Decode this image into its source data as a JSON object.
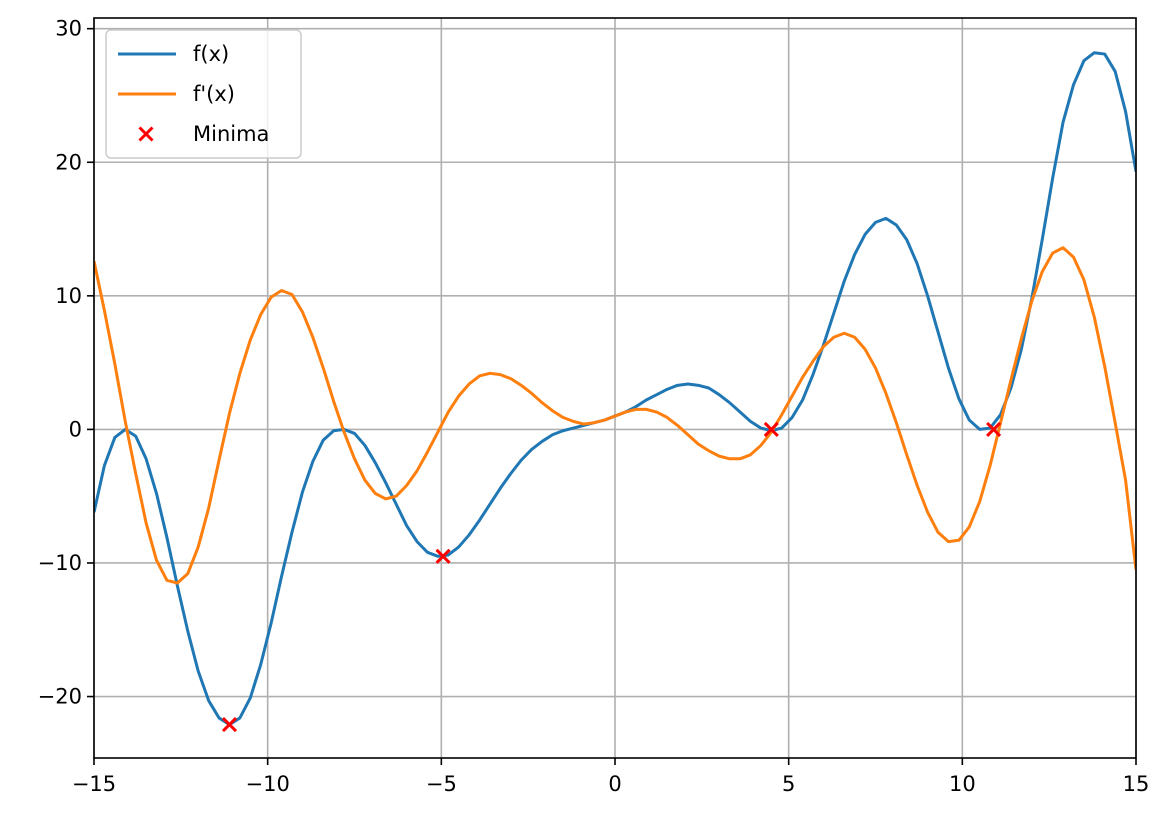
{
  "chart_data": {
    "type": "line",
    "xlim": [
      -15,
      15
    ],
    "ylim": [
      -24.6,
      30.8
    ],
    "grid": true,
    "legend_placement": "top-left",
    "x_ticks": [
      -15,
      -10,
      -5,
      0,
      5,
      10,
      15
    ],
    "x_tick_labels": [
      "−15",
      "−10",
      "−5",
      "0",
      "5",
      "10",
      "15"
    ],
    "y_ticks": [
      -20,
      -10,
      0,
      10,
      20,
      30
    ],
    "y_tick_labels": [
      "−20",
      "−10",
      "0",
      "10",
      "20",
      "30"
    ],
    "series": [
      {
        "name": "f(x)",
        "kind": "line",
        "color": "#1f77b4",
        "x": [
          -15,
          -14.7,
          -14.4,
          -14.1,
          -13.8,
          -13.5,
          -13.2,
          -12.9,
          -12.6,
          -12.3,
          -12.0,
          -11.7,
          -11.4,
          -11.1,
          -10.8,
          -10.5,
          -10.2,
          -9.9,
          -9.6,
          -9.3,
          -9.0,
          -8.7,
          -8.4,
          -8.1,
          -7.8,
          -7.5,
          -7.2,
          -6.9,
          -6.6,
          -6.3,
          -6.0,
          -5.7,
          -5.4,
          -5.1,
          -4.8,
          -4.5,
          -4.2,
          -3.9,
          -3.6,
          -3.3,
          -3.0,
          -2.7,
          -2.4,
          -2.1,
          -1.8,
          -1.5,
          -1.2,
          -0.9,
          -0.6,
          -0.3,
          0.0,
          0.3,
          0.6,
          0.9,
          1.2,
          1.5,
          1.8,
          2.1,
          2.4,
          2.7,
          3.0,
          3.3,
          3.6,
          3.9,
          4.2,
          4.5,
          4.8,
          5.1,
          5.4,
          5.7,
          6.0,
          6.3,
          6.6,
          6.9,
          7.2,
          7.5,
          7.8,
          8.1,
          8.4,
          8.7,
          9.0,
          9.3,
          9.6,
          9.9,
          10.2,
          10.5,
          10.8,
          11.1,
          11.4,
          11.7,
          12.0,
          12.3,
          12.6,
          12.9,
          13.2,
          13.5,
          13.8,
          14.1,
          14.4,
          14.7,
          15.0
        ],
        "y": [
          -6.2,
          -2.7,
          -0.6,
          0.0,
          -0.5,
          -2.2,
          -4.8,
          -8.1,
          -11.7,
          -15.1,
          -18.1,
          -20.3,
          -21.6,
          -22.1,
          -21.6,
          -20.1,
          -17.6,
          -14.5,
          -11.0,
          -7.7,
          -4.7,
          -2.4,
          -0.8,
          -0.1,
          0.0,
          -0.3,
          -1.2,
          -2.5,
          -4.0,
          -5.6,
          -7.2,
          -8.4,
          -9.2,
          -9.5,
          -9.4,
          -8.8,
          -7.9,
          -6.8,
          -5.6,
          -4.4,
          -3.3,
          -2.3,
          -1.5,
          -0.9,
          -0.4,
          -0.1,
          0.1,
          0.3,
          0.5,
          0.7,
          1.0,
          1.3,
          1.7,
          2.2,
          2.6,
          3.0,
          3.3,
          3.4,
          3.3,
          3.1,
          2.6,
          2.0,
          1.3,
          0.6,
          0.1,
          -0.1,
          0.1,
          0.9,
          2.2,
          4.1,
          6.3,
          8.7,
          11.1,
          13.1,
          14.6,
          15.5,
          15.8,
          15.3,
          14.2,
          12.4,
          10.0,
          7.3,
          4.6,
          2.3,
          0.7,
          0.0,
          0.1,
          1.1,
          3.1,
          6.0,
          9.8,
          14.2,
          18.8,
          23.0,
          25.8,
          27.6,
          28.2,
          28.1,
          26.8,
          23.8,
          19.3
        ]
      },
      {
        "name": "f'(x)",
        "kind": "line",
        "color": "#ff7f0e",
        "x": [
          -15,
          -14.7,
          -14.4,
          -14.1,
          -13.8,
          -13.5,
          -13.2,
          -12.9,
          -12.6,
          -12.3,
          -12.0,
          -11.7,
          -11.4,
          -11.1,
          -10.8,
          -10.5,
          -10.2,
          -9.9,
          -9.6,
          -9.3,
          -9.0,
          -8.7,
          -8.4,
          -8.1,
          -7.8,
          -7.5,
          -7.2,
          -6.9,
          -6.6,
          -6.3,
          -6.0,
          -5.7,
          -5.4,
          -5.1,
          -4.8,
          -4.5,
          -4.2,
          -3.9,
          -3.6,
          -3.3,
          -3.0,
          -2.7,
          -2.4,
          -2.1,
          -1.8,
          -1.5,
          -1.2,
          -0.9,
          -0.6,
          -0.3,
          0.0,
          0.3,
          0.6,
          0.9,
          1.2,
          1.5,
          1.8,
          2.1,
          2.4,
          2.7,
          3.0,
          3.3,
          3.6,
          3.9,
          4.2,
          4.5,
          4.8,
          5.1,
          5.4,
          5.7,
          6.0,
          6.3,
          6.6,
          6.9,
          7.2,
          7.5,
          7.8,
          8.1,
          8.4,
          8.7,
          9.0,
          9.3,
          9.6,
          9.9,
          10.2,
          10.5,
          10.8,
          11.1,
          11.4,
          11.7,
          12.0,
          12.3,
          12.6,
          12.9,
          13.2,
          13.5,
          13.8,
          14.1,
          14.4,
          14.7,
          15.0
        ],
        "y": [
          12.6,
          8.9,
          4.9,
          0.6,
          -3.3,
          -7.0,
          -9.8,
          -11.3,
          -11.5,
          -10.8,
          -8.8,
          -5.9,
          -2.3,
          1.2,
          4.2,
          6.7,
          8.6,
          9.9,
          10.4,
          10.1,
          8.8,
          6.9,
          4.6,
          2.1,
          -0.2,
          -2.2,
          -3.8,
          -4.8,
          -5.2,
          -5.0,
          -4.2,
          -3.1,
          -1.7,
          -0.2,
          1.3,
          2.5,
          3.4,
          4.0,
          4.2,
          4.1,
          3.8,
          3.3,
          2.7,
          2.0,
          1.4,
          0.9,
          0.6,
          0.4,
          0.5,
          0.7,
          1.0,
          1.3,
          1.5,
          1.5,
          1.3,
          0.9,
          0.3,
          -0.4,
          -1.1,
          -1.6,
          -2.0,
          -2.2,
          -2.2,
          -1.9,
          -1.2,
          -0.2,
          1.1,
          2.5,
          3.9,
          5.1,
          6.2,
          6.9,
          7.2,
          6.9,
          6.0,
          4.6,
          2.7,
          0.5,
          -1.9,
          -4.2,
          -6.2,
          -7.7,
          -8.4,
          -8.3,
          -7.3,
          -5.4,
          -2.7,
          0.5,
          3.7,
          6.8,
          9.6,
          11.8,
          13.2,
          13.6,
          12.9,
          11.2,
          8.4,
          4.7,
          0.5,
          -3.8,
          -10.5
        ]
      },
      {
        "name": "Minima",
        "kind": "scatter",
        "marker": "x",
        "color": "#ff0000",
        "x": [
          -11.1,
          -4.95,
          4.5,
          10.9
        ],
        "y": [
          -22.1,
          -9.5,
          0.0,
          0.0
        ]
      }
    ]
  }
}
